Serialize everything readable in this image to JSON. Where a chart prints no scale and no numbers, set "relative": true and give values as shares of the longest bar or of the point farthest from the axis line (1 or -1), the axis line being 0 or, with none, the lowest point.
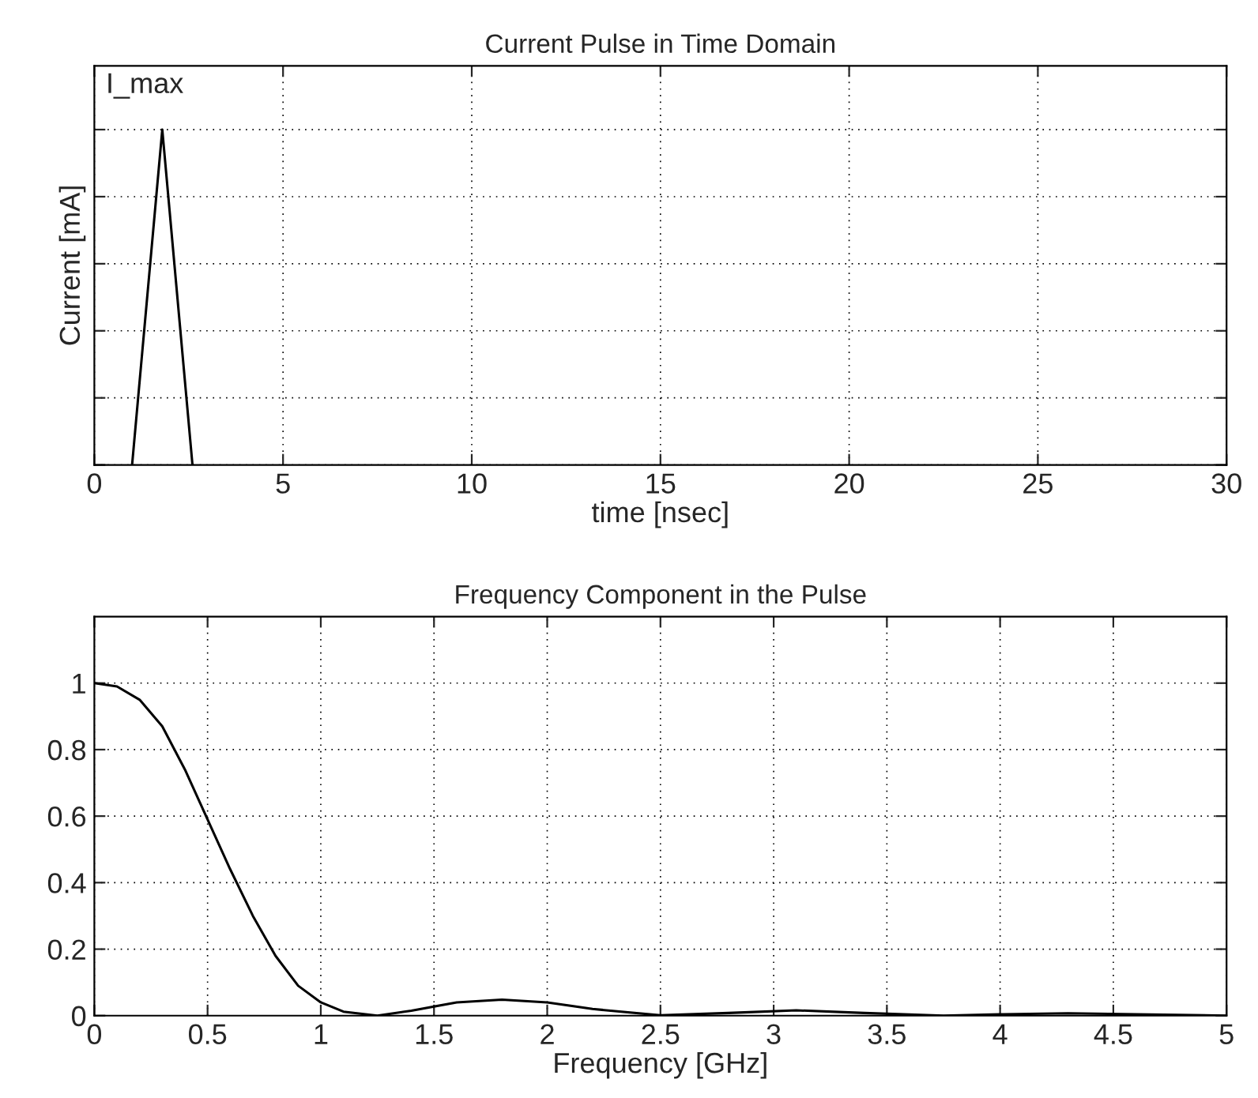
{
  "chart_data": [
    {
      "type": "line",
      "title": "Current Pulse in Time Domain",
      "xlabel": "time [nsec]",
      "ylabel": "Current [mA]",
      "relative": true,
      "series": [
        {
          "color": "#000000",
          "x": [
            1.0,
            1.8,
            2.6
          ],
          "values": [
            0,
            1,
            0
          ]
        }
      ],
      "xlim": [
        0,
        30
      ],
      "xticks": [
        0,
        5,
        10,
        15,
        20,
        25,
        30
      ],
      "grid": true,
      "tick_labels": "x",
      "annotations": [
        {
          "text": "I_max",
          "x": 1.8,
          "y": 1
        }
      ]
    },
    {
      "type": "line",
      "title": "Frequency Component in the Pulse",
      "xlabel": "Frequency [GHz]",
      "series": [
        {
          "color": "#000000",
          "x": [
            0,
            0.1,
            0.2,
            0.3,
            0.4,
            0.5,
            0.6,
            0.7,
            0.8,
            0.9,
            1.0,
            1.1,
            1.25,
            1.4,
            1.6,
            1.8,
            2.0,
            2.2,
            2.5,
            2.8,
            3.1,
            3.4,
            3.75,
            4.0,
            4.3,
            4.6,
            5.0
          ],
          "values": [
            1,
            0.99,
            0.95,
            0.87,
            0.74,
            0.59,
            0.44,
            0.3,
            0.18,
            0.09,
            0.04,
            0.012,
            0,
            0.015,
            0.04,
            0.048,
            0.04,
            0.02,
            0.001,
            0.008,
            0.016,
            0.008,
            0,
            0.004,
            0.007,
            0.004,
            0
          ]
        }
      ],
      "xlim": [
        0,
        5
      ],
      "xticks": [
        0,
        0.5,
        1,
        1.5,
        2,
        2.5,
        3,
        3.5,
        4,
        4.5,
        5
      ],
      "ylim": [
        0,
        1.2
      ],
      "yticks": [
        0,
        0.2,
        0.4,
        0.6,
        0.8,
        1
      ],
      "grid": true
    }
  ]
}
